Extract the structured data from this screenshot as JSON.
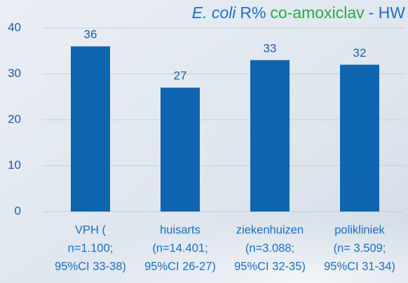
{
  "chart_data": {
    "type": "bar",
    "title": [
      {
        "text": "E. coli",
        "color": "#1f6fc5",
        "italic": true
      },
      {
        "text": "R%",
        "color": "#1f6fc5",
        "italic": false
      },
      {
        "text": "co-amoxiclav",
        "color": "#2aa84a",
        "italic": false
      },
      {
        "text": "- HW",
        "color": "#1f6fc5",
        "italic": false
      }
    ],
    "categories": [
      [
        "VPH (",
        "n=1.100;",
        "95%CI 33-38)"
      ],
      [
        "huisarts",
        "(n=14.401;",
        "95%CI 26-27)"
      ],
      [
        "ziekenhuizen",
        "(n=3.088;",
        "95%CI 32-35)"
      ],
      [
        "polikliniek",
        "(n= 3.509;",
        "95%CI 31-34)"
      ]
    ],
    "values": [
      36,
      27,
      33,
      32
    ],
    "color": "#0f65b0",
    "ylim": [
      0,
      40
    ],
    "yticks": [
      0,
      10,
      20,
      30,
      40
    ],
    "grid": true
  }
}
